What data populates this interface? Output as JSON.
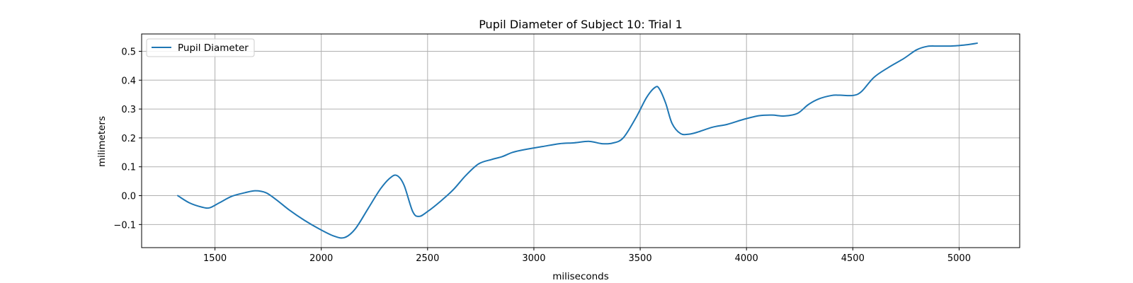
{
  "chart_data": {
    "type": "line",
    "title": "Pupil Diameter of Subject 10: Trial 1",
    "xlabel": "miliseconds",
    "ylabel": "milimeters",
    "xlim": [
      1155,
      5285
    ],
    "ylim": [
      -0.18,
      0.56
    ],
    "xticks": [
      1500,
      2000,
      2500,
      3000,
      3500,
      4000,
      4500,
      5000
    ],
    "yticks": [
      -0.1,
      0.0,
      0.1,
      0.2,
      0.3,
      0.4,
      0.5
    ],
    "ytick_labels": [
      "−0.1",
      "0.0",
      "0.1",
      "0.2",
      "0.3",
      "0.4",
      "0.5"
    ],
    "grid": true,
    "legend_position": "top-left",
    "series": [
      {
        "name": "Pupil Diameter",
        "color": "#1f77b4",
        "x": [
          1325,
          1380,
          1440,
          1475,
          1520,
          1580,
          1640,
          1690,
          1740,
          1790,
          1850,
          1920,
          1990,
          2060,
          2110,
          2160,
          2220,
          2280,
          2330,
          2360,
          2390,
          2430,
          2460,
          2500,
          2560,
          2620,
          2680,
          2740,
          2800,
          2850,
          2900,
          2960,
          3040,
          3120,
          3190,
          3260,
          3320,
          3370,
          3420,
          3480,
          3530,
          3570,
          3590,
          3620,
          3650,
          3690,
          3730,
          3770,
          3840,
          3910,
          3990,
          4060,
          4120,
          4180,
          4240,
          4290,
          4340,
          4400,
          4440,
          4500,
          4540,
          4600,
          4670,
          4740,
          4800,
          4850,
          4900,
          4960,
          5000,
          5040,
          5085
        ],
        "y": [
          0.0,
          -0.025,
          -0.04,
          -0.042,
          -0.025,
          -0.002,
          0.01,
          0.017,
          0.01,
          -0.015,
          -0.05,
          -0.085,
          -0.115,
          -0.14,
          -0.145,
          -0.115,
          -0.045,
          0.025,
          0.065,
          0.068,
          0.035,
          -0.055,
          -0.072,
          -0.055,
          -0.02,
          0.02,
          0.07,
          0.11,
          0.125,
          0.135,
          0.15,
          0.16,
          0.17,
          0.18,
          0.183,
          0.188,
          0.18,
          0.182,
          0.2,
          0.27,
          0.34,
          0.375,
          0.37,
          0.32,
          0.25,
          0.215,
          0.213,
          0.22,
          0.237,
          0.247,
          0.265,
          0.277,
          0.279,
          0.276,
          0.285,
          0.315,
          0.335,
          0.347,
          0.348,
          0.347,
          0.36,
          0.41,
          0.445,
          0.475,
          0.505,
          0.517,
          0.518,
          0.518,
          0.52,
          0.523,
          0.528
        ]
      }
    ]
  }
}
